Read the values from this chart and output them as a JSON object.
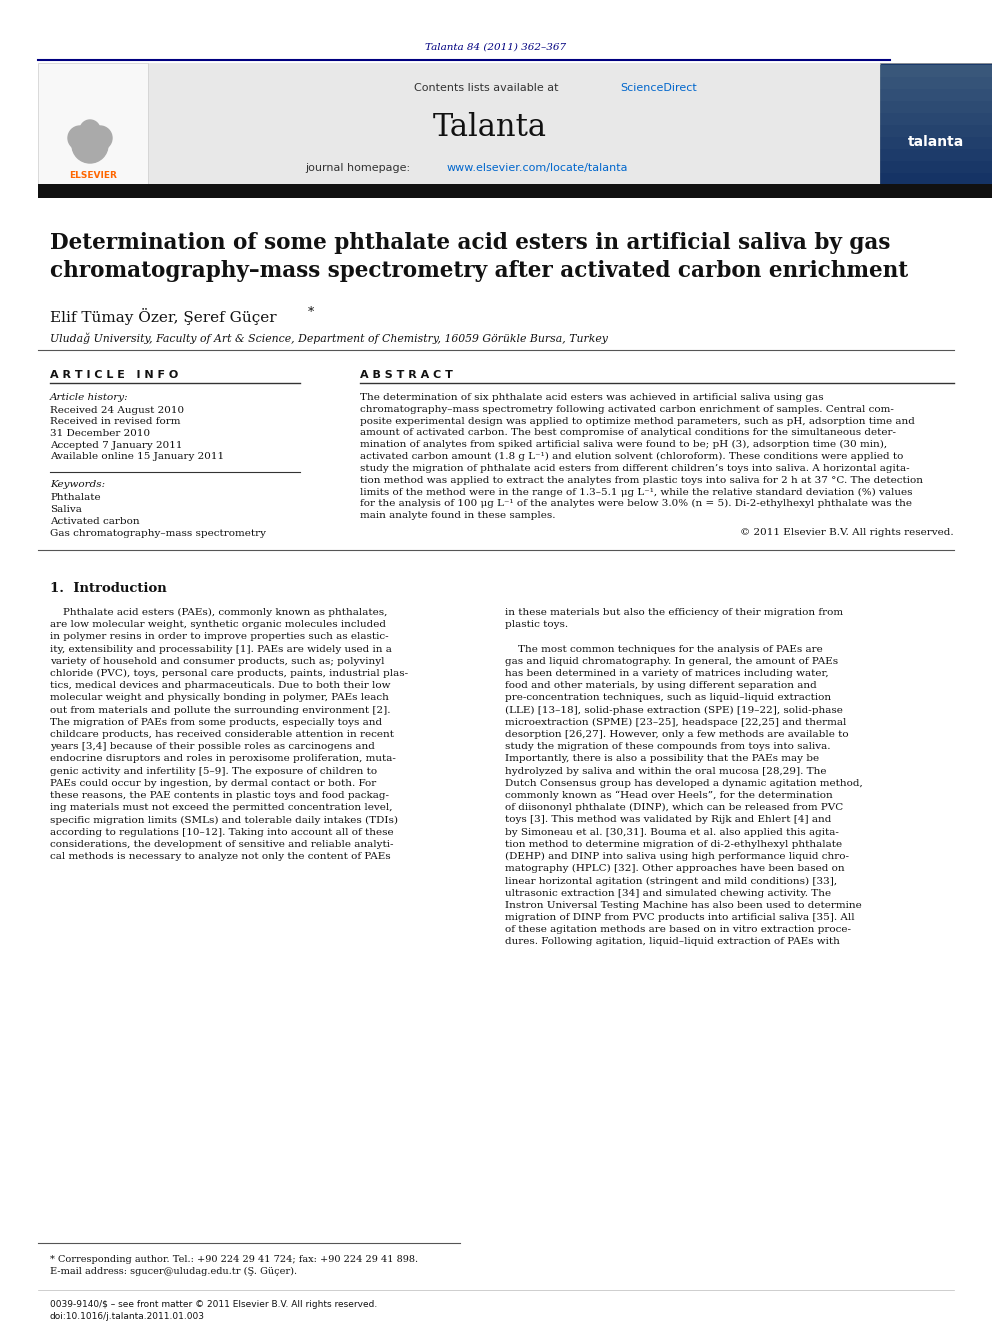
{
  "page_citation": "Talanta 84 (2011) 362–367",
  "journal_header_text": "Contents lists available at ScienceDirect",
  "journal_name": "Talanta",
  "journal_homepage": "journal homepage: www.elsevier.com/locate/talanta",
  "article_title": "Determination of some phthalate acid esters in artificial saliva by gas\nchromatography–mass spectrometry after activated carbon enrichment",
  "authors": "Elif Tümay Özer, Şeref Güçer*",
  "affiliation": "Uludağ University, Faculty of Art & Science, Department of Chemistry, 16059 Görükle Bursa, Turkey",
  "article_info_title": "A R T I C L E   I N F O",
  "article_history_label": "Article history:",
  "article_history": [
    "Received 24 August 2010",
    "Received in revised form",
    "31 December 2010",
    "Accepted 7 January 2011",
    "Available online 15 January 2011"
  ],
  "keywords_label": "Keywords:",
  "keywords": [
    "Phthalate",
    "Saliva",
    "Activated carbon",
    "Gas chromatography–mass spectrometry"
  ],
  "abstract_title": "A B S T R A C T",
  "copyright": "© 2011 Elsevier B.V. All rights reserved.",
  "section1_title": "1.  Introduction",
  "footnote_star": "* Corresponding author. Tel.: +90 224 29 41 724; fax: +90 224 29 41 898.",
  "footnote_email": "E-mail address: sgucer@uludag.edu.tr (Ş. Güçer).",
  "footer_issn": "0039-9140/$ – see front matter © 2011 Elsevier B.V. All rights reserved.",
  "footer_doi": "doi:10.1016/j.talanta.2011.01.003",
  "bg_color": "#ffffff",
  "header_bg": "#e8e8e8",
  "elsevier_orange": "#ff6600",
  "link_color": "#0066cc",
  "dark_blue": "#000080",
  "line_color": "#333333",
  "abstract_lines": [
    "The determination of six phthalate acid esters was achieved in artificial saliva using gas",
    "chromatography–mass spectrometry following activated carbon enrichment of samples. Central com-",
    "posite experimental design was applied to optimize method parameters, such as pH, adsorption time and",
    "amount of activated carbon. The best compromise of analytical conditions for the simultaneous deter-",
    "mination of analytes from spiked artificial saliva were found to be; pH (3), adsorption time (30 min),",
    "activated carbon amount (1.8 g L⁻¹) and elution solvent (chloroform). These conditions were applied to",
    "study the migration of phthalate acid esters from different children’s toys into saliva. A horizontal agita-",
    "tion method was applied to extract the analytes from plastic toys into saliva for 2 h at 37 °C. The detection",
    "limits of the method were in the range of 1.3–5.1 μg L⁻¹, while the relative standard deviation (%) values",
    "for the analysis of 100 μg L⁻¹ of the analytes were below 3.0% (n = 5). Di-2-ethylhexyl phthalate was the",
    "main analyte found in these samples."
  ],
  "intro_col1_lines": [
    "    Phthalate acid esters (PAEs), commonly known as phthalates,",
    "are low molecular weight, synthetic organic molecules included",
    "in polymer resins in order to improve properties such as elastic-",
    "ity, extensibility and processability [1]. PAEs are widely used in a",
    "variety of household and consumer products, such as; polyvinyl",
    "chloride (PVC), toys, personal care products, paints, industrial plas-",
    "tics, medical devices and pharmaceuticals. Due to both their low",
    "molecular weight and physically bonding in polymer, PAEs leach",
    "out from materials and pollute the surrounding environment [2].",
    "The migration of PAEs from some products, especially toys and",
    "childcare products, has received considerable attention in recent",
    "years [3,4] because of their possible roles as carcinogens and",
    "endocrine disruptors and roles in peroxisome proliferation, muta-",
    "genic activity and infertility [5–9]. The exposure of children to",
    "PAEs could occur by ingestion, by dermal contact or both. For",
    "these reasons, the PAE contents in plastic toys and food packag-",
    "ing materials must not exceed the permitted concentration level,",
    "specific migration limits (SMLs) and tolerable daily intakes (TDIs)",
    "according to regulations [10–12]. Taking into account all of these",
    "considerations, the development of sensitive and reliable analyti-",
    "cal methods is necessary to analyze not only the content of PAEs"
  ],
  "intro_col2_lines": [
    "in these materials but also the efficiency of their migration from",
    "plastic toys.",
    "",
    "    The most common techniques for the analysis of PAEs are",
    "gas and liquid chromatography. In general, the amount of PAEs",
    "has been determined in a variety of matrices including water,",
    "food and other materials, by using different separation and",
    "pre-concentration techniques, such as liquid–liquid extraction",
    "(LLE) [13–18], solid-phase extraction (SPE) [19–22], solid-phase",
    "microextraction (SPME) [23–25], headspace [22,25] and thermal",
    "desorption [26,27]. However, only a few methods are available to",
    "study the migration of these compounds from toys into saliva.",
    "Importantly, there is also a possibility that the PAEs may be",
    "hydrolyzed by saliva and within the oral mucosa [28,29]. The",
    "Dutch Consensus group has developed a dynamic agitation method,",
    "commonly known as “Head over Heels”, for the determination",
    "of diisononyl phthalate (DINP), which can be released from PVC",
    "toys [3]. This method was validated by Rijk and Ehlert [4] and",
    "by Simoneau et al. [30,31]. Bouma et al. also applied this agita-",
    "tion method to determine migration of di-2-ethylhexyl phthalate",
    "(DEHP) and DINP into saliva using high performance liquid chro-",
    "matography (HPLC) [32]. Other approaches have been based on",
    "linear horizontal agitation (stringent and mild conditions) [33],",
    "ultrasonic extraction [34] and simulated chewing activity. The",
    "Instron Universal Testing Machine has also been used to determine",
    "migration of DINP from PVC products into artificial saliva [35]. All",
    "of these agitation methods are based on in vitro extraction proce-",
    "dures. Following agitation, liquid–liquid extraction of PAEs with"
  ]
}
